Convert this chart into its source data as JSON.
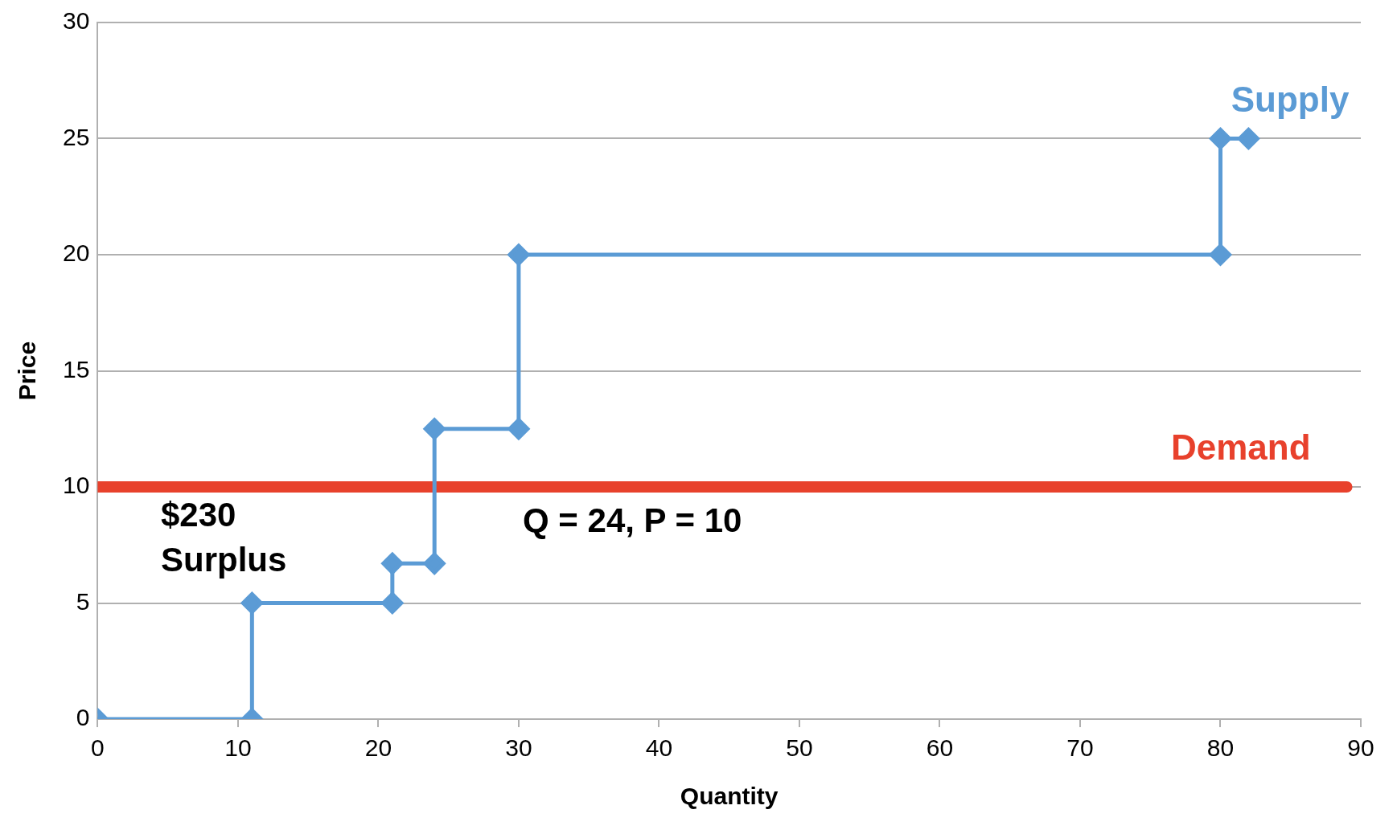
{
  "chart_data": {
    "type": "line",
    "xlabel": "Quantity",
    "ylabel": "Price",
    "xlim": [
      0,
      90
    ],
    "xticks": [
      0,
      10,
      20,
      30,
      40,
      50,
      60,
      70,
      80,
      90
    ],
    "ylim": [
      0,
      30
    ],
    "yticks": [
      0,
      5,
      10,
      15,
      20,
      25,
      30
    ],
    "grid": "y",
    "legend": false,
    "marker": "diamond",
    "line_style": "solid",
    "series": [
      {
        "name": "Supply",
        "color": "#5b9bd5",
        "x": [
          0,
          11,
          11,
          21,
          21,
          24,
          24,
          30,
          30,
          80,
          80,
          82
        ],
        "values": [
          0,
          0,
          5,
          5,
          6.7,
          6.7,
          12.5,
          12.5,
          20,
          20,
          25,
          25
        ]
      },
      {
        "name": "Demand",
        "color": "#e8412c",
        "marker": "none",
        "x": [
          0,
          89
        ],
        "values": [
          10,
          10
        ]
      }
    ],
    "annotations": [
      "$230\nSurplus",
      "Q = 24, P = 10"
    ]
  }
}
